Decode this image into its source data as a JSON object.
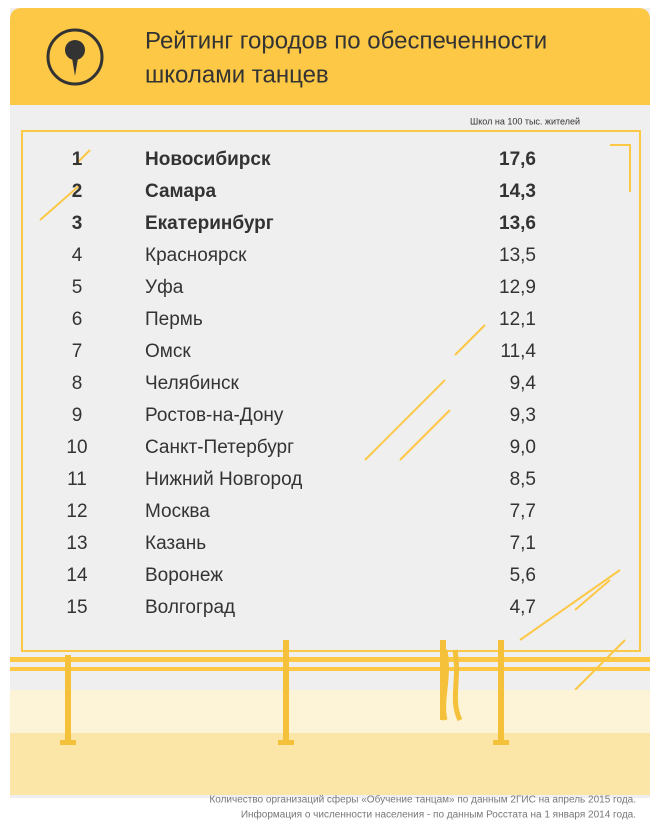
{
  "header": {
    "title_lines": [
      "Рейтинг городов по обеспеченности",
      "школами танцев"
    ]
  },
  "table": {
    "column_header": "Школ на 100 тыс. жителей",
    "rows": [
      [
        "1",
        "Новосибирск",
        "17,6"
      ],
      [
        "2",
        "Самара",
        "14,3"
      ],
      [
        "3",
        "Екатеринбург",
        "13,6"
      ],
      [
        "4",
        "Красноярск",
        "13,5"
      ],
      [
        "5",
        "Уфа",
        "12,9"
      ],
      [
        "6",
        "Пермь",
        "12,1"
      ],
      [
        "7",
        "Омск",
        "11,4"
      ],
      [
        "8",
        "Челябинск",
        "9,4"
      ],
      [
        "9",
        "Ростов-на-Дону",
        "9,3"
      ],
      [
        "10",
        "Санкт-Петербург",
        "9,0"
      ],
      [
        "11",
        "Нижний Новгород",
        "8,5"
      ],
      [
        "12",
        "Москва",
        "7,7"
      ],
      [
        "13",
        "Казань",
        "7,1"
      ],
      [
        "14",
        "Воронеж",
        "5,6"
      ],
      [
        "15",
        "Волгоград",
        "4,7"
      ]
    ]
  },
  "footer": {
    "notes": [
      "Количество организаций сферы «Обучение танцам» по данным 2ГИС на апрель 2015 года.",
      "Информация о численности населения - по данным Росстата на 1 января 2014 года."
    ]
  }
}
